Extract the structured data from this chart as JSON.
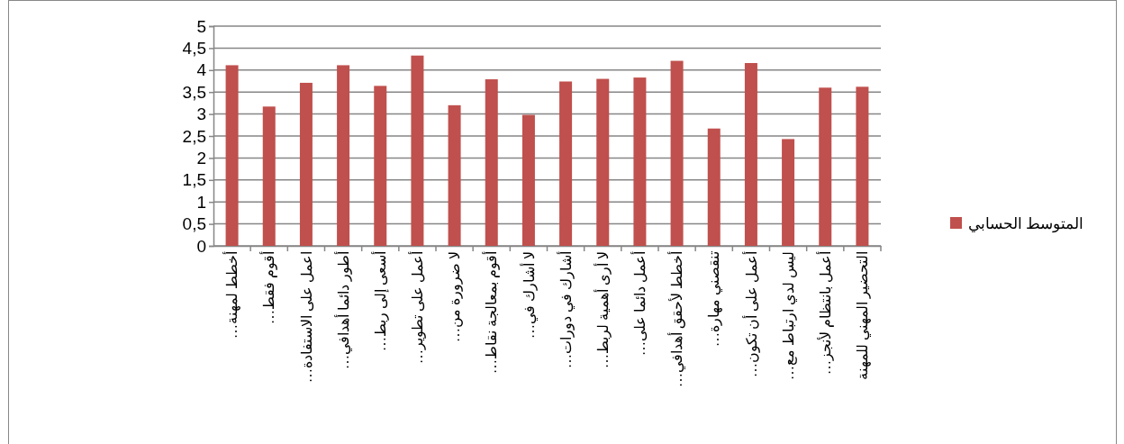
{
  "chart_data": {
    "type": "bar",
    "categories": [
      "أخطط لمهنة…",
      "أقوم فقط…",
      "اعمل على الاستفادة…",
      "أطور دائما أهدافي…",
      "أسعى إلى ربط…",
      "أعمل على تطوير…",
      "لا ضرورة من…",
      "أقوم بمعالجة نقاط…",
      "لا أشارك في…",
      "أشارك في دورات…",
      "لا أرى أهمية لربط…",
      "أعمل دائما على…",
      "أخطط لأحقق أهدافي…",
      "تنقصني مهارة…",
      "أعمل على أن تكون…",
      "ليس لدي ارتباط مع…",
      "أعمل بانتظام لأنجز…",
      "التحضير المهني للمهنة"
    ],
    "series": [
      {
        "name": "المتوسط الحسابي",
        "color": "#c0504d",
        "values": [
          4.11,
          3.17,
          3.71,
          4.11,
          3.64,
          4.33,
          3.2,
          3.79,
          2.98,
          3.74,
          3.8,
          3.83,
          4.21,
          2.67,
          4.16,
          2.43,
          3.6,
          3.62
        ]
      }
    ],
    "ylim": [
      0,
      5
    ],
    "yticks": [
      0,
      {
        "value": 0.5,
        "label": "0,5"
      },
      1,
      {
        "value": 1.5,
        "label": "1,5"
      },
      2,
      {
        "value": 2.5,
        "label": "2,5"
      },
      3,
      {
        "value": 3.5,
        "label": "3,5"
      },
      4,
      {
        "value": 4.5,
        "label": "4,5"
      },
      5
    ],
    "grid": "y",
    "legend": "right"
  }
}
